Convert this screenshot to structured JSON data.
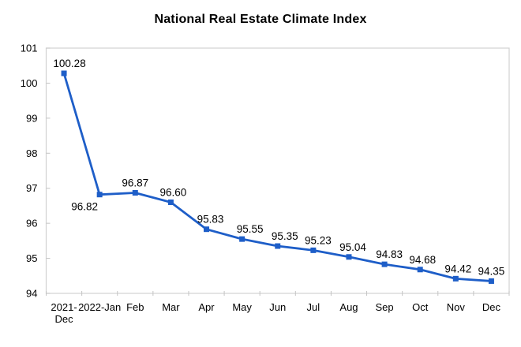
{
  "chart_data": {
    "type": "line",
    "title": "National Real Estate Climate Index",
    "categories": [
      "2021-\nDec",
      "2022-Jan",
      "Feb",
      "Mar",
      "Apr",
      "May",
      "Jun",
      "Jul",
      "Aug",
      "Sep",
      "Oct",
      "Nov",
      "Dec"
    ],
    "values": [
      100.28,
      96.82,
      96.87,
      96.6,
      95.83,
      95.55,
      95.35,
      95.23,
      95.04,
      94.83,
      94.68,
      94.42,
      94.35
    ],
    "point_labels": [
      "100.28",
      "96.82",
      "96.87",
      "96.60",
      "95.83",
      "95.55",
      "95.35",
      "95.23",
      "95.04",
      "94.83",
      "94.68",
      "94.42",
      "94.35"
    ],
    "label_positions": [
      "above",
      "below",
      "above",
      "above",
      "above",
      "above",
      "above",
      "above",
      "above",
      "above",
      "above",
      "above",
      "above"
    ],
    "label_dx": [
      7,
      -19,
      0,
      3,
      5,
      10,
      9,
      6,
      5,
      6,
      3,
      3,
      0
    ],
    "ylim": [
      94,
      101
    ],
    "yticks": [
      94,
      95,
      96,
      97,
      98,
      99,
      100,
      101
    ],
    "xlabel": "",
    "ylabel": "",
    "grid": false,
    "legend": "none",
    "series_name": "National Real Estate Climate Index",
    "marker": "square",
    "line_color": "#1E5EC8",
    "axis_color": "#D2D2D2",
    "tick_color": "#C4C4C4",
    "text_color": "#000000",
    "background": "#ffffff"
  }
}
